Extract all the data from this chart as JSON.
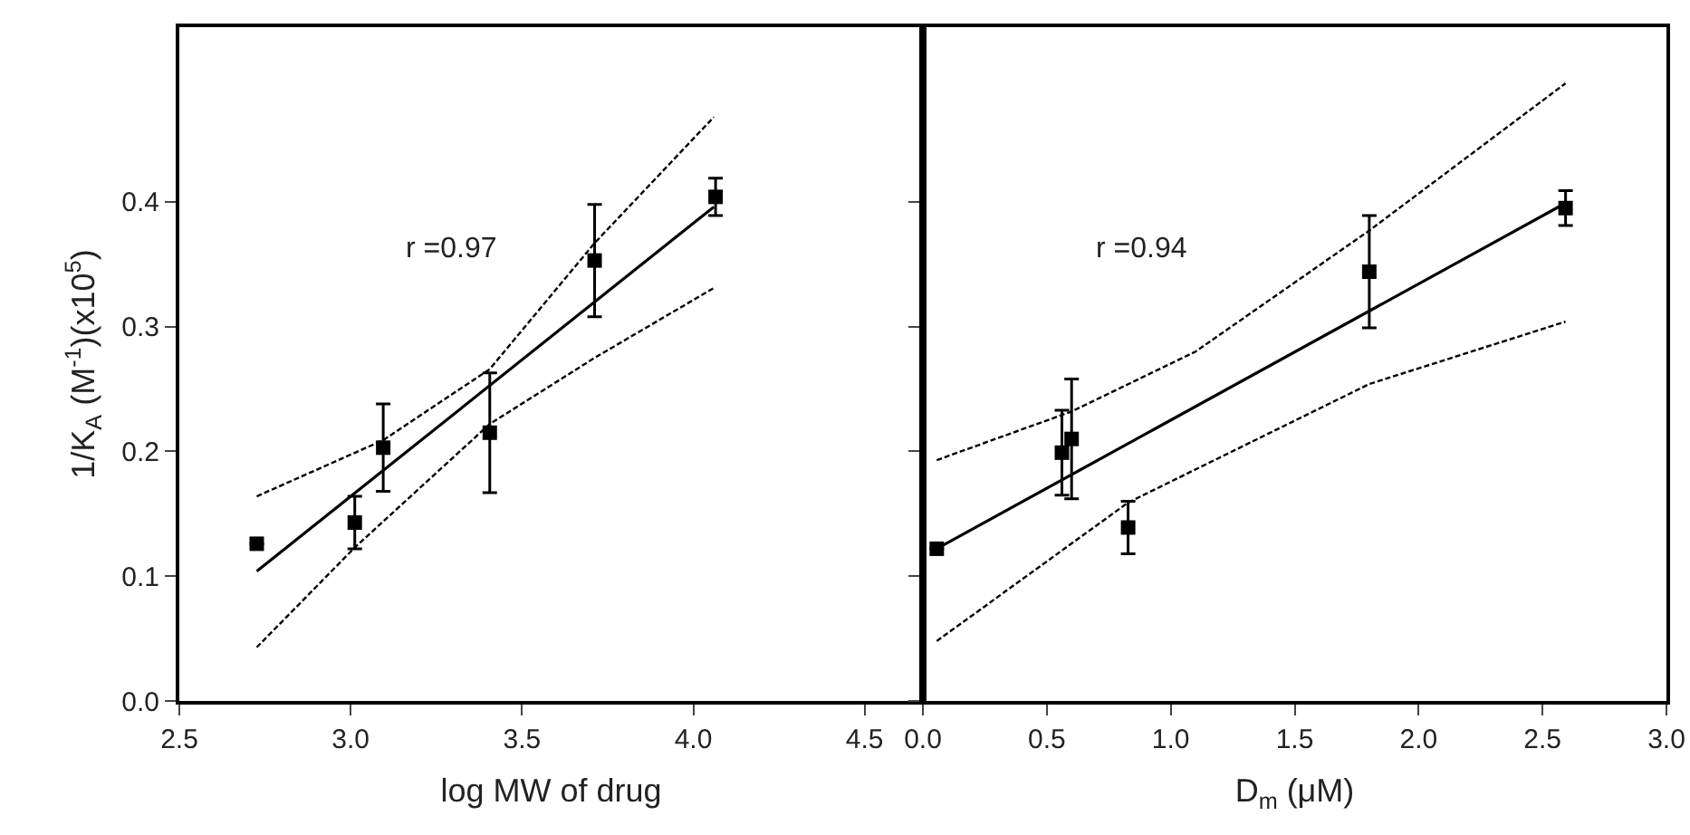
{
  "chart_data": [
    {
      "type": "scatter",
      "xlabel": "log MW of drug",
      "ylabel": "1/K$_{A}$ (M$^{-1}$)(x10$^{5}$)",
      "annotations": [
        "r =0.97"
      ],
      "xlim": [
        2.5,
        4.67
      ],
      "xticks": [
        {
          "value": 2.5,
          "label": "2.5"
        },
        {
          "value": 3,
          "label": "3.0"
        },
        {
          "value": 3.5,
          "label": "3.5"
        },
        {
          "value": 4,
          "label": "4.0"
        },
        {
          "value": 4.5,
          "label": "4.5"
        }
      ],
      "ylim": [
        0,
        0.54
      ],
      "yticks": [
        {
          "value": 0,
          "label": "0.0"
        },
        {
          "value": 0.1,
          "label": "0.1"
        },
        {
          "value": 0.2,
          "label": "0.2"
        },
        {
          "value": 0.3,
          "label": "0.3"
        },
        {
          "value": 0.4,
          "label": "0.4"
        }
      ],
      "grid": false,
      "series": [
        {
          "color": "#000000",
          "marker": "square",
          "x": [
            2.726,
            3.012,
            3.095,
            3.406,
            3.712,
            4.065
          ],
          "values": [
            0.126,
            0.143,
            0.203,
            0.215,
            0.353,
            0.404
          ],
          "errors": [
            null,
            0.021,
            0.035,
            0.048,
            0.045,
            0.015
          ]
        },
        {
          "type": "line",
          "color": "#000000",
          "line_style": "solid",
          "x": [
            2.726,
            4.06
          ],
          "values": [
            0.104,
            0.396
          ]
        },
        {
          "type": "line",
          "color": "#000000",
          "line_style": "dashed",
          "x": [
            2.726,
            3.095,
            3.406,
            3.712,
            4.06
          ],
          "values": [
            0.164,
            0.209,
            0.266,
            0.367,
            0.468
          ]
        },
        {
          "type": "line",
          "color": "#000000",
          "line_style": "dashed",
          "x": [
            2.726,
            3.012,
            3.406,
            3.712,
            4.06
          ],
          "values": [
            0.043,
            0.123,
            0.222,
            0.275,
            0.331
          ]
        }
      ]
    },
    {
      "type": "scatter",
      "xlabel": "D$_{m}$ (μM)",
      "annotations": [
        "r =0.94"
      ],
      "xlim": [
        0,
        3
      ],
      "xticks": [
        {
          "value": 0,
          "label": "0.0"
        },
        {
          "value": 0.5,
          "label": "0.5"
        },
        {
          "value": 1,
          "label": "1.0"
        },
        {
          "value": 1.5,
          "label": "1.5"
        },
        {
          "value": 2,
          "label": "2.0"
        },
        {
          "value": 2.5,
          "label": "2.5"
        },
        {
          "value": 3,
          "label": "3.0"
        }
      ],
      "ylim": [
        0,
        0.54
      ],
      "yticks": [
        {
          "value": 0,
          "label": null
        },
        {
          "value": 0.1,
          "label": null
        },
        {
          "value": 0.2,
          "label": null
        },
        {
          "value": 0.3,
          "label": null
        },
        {
          "value": 0.4,
          "label": null
        }
      ],
      "tick_labels": "x",
      "grid": false,
      "series": [
        {
          "color": "#000000",
          "marker": "square",
          "x": [
            0.056,
            0.561,
            0.6,
            0.828,
            1.801,
            2.593
          ],
          "values": [
            0.122,
            0.199,
            0.21,
            0.139,
            0.344,
            0.395
          ],
          "errors": [
            null,
            0.034,
            0.048,
            0.021,
            0.045,
            0.014
          ]
        },
        {
          "type": "line",
          "color": "#000000",
          "line_style": "solid",
          "x": [
            0.056,
            2.593
          ],
          "values": [
            0.122,
            0.399
          ]
        },
        {
          "type": "line",
          "color": "#000000",
          "line_style": "dashed",
          "x": [
            0.056,
            0.6,
            1.1,
            1.801,
            2.593
          ],
          "values": [
            0.193,
            0.232,
            0.28,
            0.377,
            0.495
          ]
        },
        {
          "type": "line",
          "color": "#000000",
          "line_style": "dashed",
          "x": [
            0.056,
            0.828,
            1.801,
            2.593
          ],
          "values": [
            0.048,
            0.159,
            0.254,
            0.304
          ]
        }
      ]
    }
  ]
}
